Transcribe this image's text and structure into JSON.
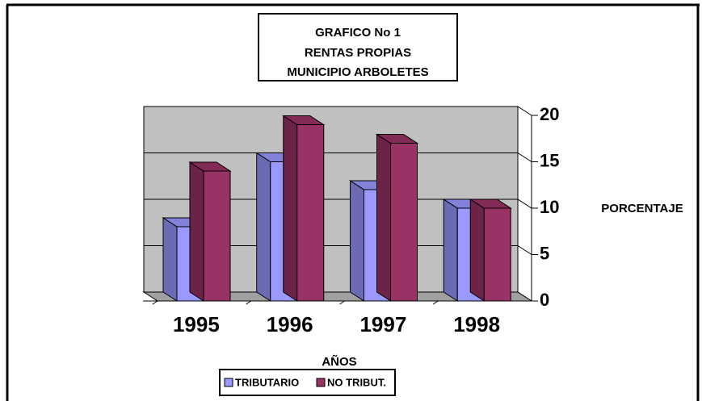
{
  "chart_data": {
    "type": "bar",
    "title": [
      "GRAFICO No 1",
      "RENTAS PROPIAS",
      "MUNICIPIO ARBOLETES"
    ],
    "x_label": "AÑOS",
    "y_label": "PORCENTAJE",
    "categories": [
      "1995",
      "1996",
      "1997",
      "1998"
    ],
    "series": [
      {
        "name": "TRIBUTARIO",
        "color": "#9999ff",
        "values": [
          8,
          15,
          12,
          10
        ]
      },
      {
        "name": "NO TRIBUT.",
        "color": "#993366",
        "values": [
          14,
          19,
          17,
          10
        ]
      }
    ],
    "ylim": [
      0,
      20
    ],
    "yticks": [
      0,
      5,
      10,
      15,
      20
    ],
    "grid": true
  }
}
